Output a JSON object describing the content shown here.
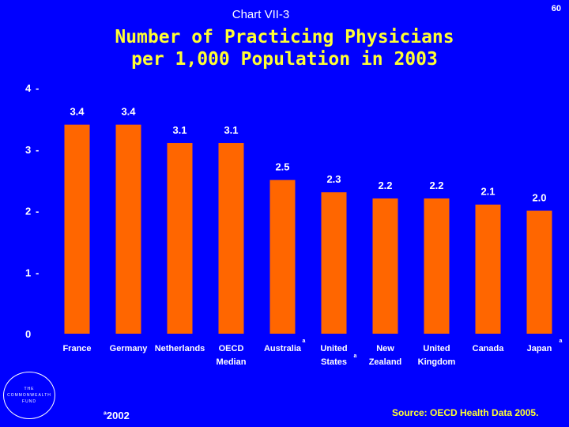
{
  "header": {
    "chart_label": "Chart VII-3",
    "page_number": "60",
    "title_line1": "Number of Practicing Physicians",
    "title_line2": "per 1,000 Population in 2003"
  },
  "footer": {
    "footnote_marker": "a",
    "footnote_text": "2002",
    "source": "Source: OECD Health Data 2005.",
    "logo_lines": [
      "THE",
      "COMMONWEALTH",
      "FUND"
    ]
  },
  "colors": {
    "background": "#0000ff",
    "bar": "#ff6600",
    "title": "#ffff33",
    "text": "#ffffff"
  },
  "chart_data": {
    "type": "bar",
    "title": "Number of Practicing Physicians per 1,000 Population in 2003",
    "xlabel": "",
    "ylabel": "",
    "ylim": [
      0,
      4
    ],
    "yticks": [
      0,
      1,
      2,
      3,
      4
    ],
    "categories": [
      {
        "line1": "France",
        "line2": "",
        "note": ""
      },
      {
        "line1": "Germany",
        "line2": "",
        "note": ""
      },
      {
        "line1": "Netherlands",
        "line2": "",
        "note": ""
      },
      {
        "line1": "OECD",
        "line2": "Median",
        "note": ""
      },
      {
        "line1": "Australia",
        "line2": "",
        "note": "a"
      },
      {
        "line1": "United",
        "line2": "States",
        "note": "a"
      },
      {
        "line1": "New",
        "line2": "Zealand",
        "note": ""
      },
      {
        "line1": "United",
        "line2": "Kingdom",
        "note": ""
      },
      {
        "line1": "Canada",
        "line2": "",
        "note": ""
      },
      {
        "line1": "Japan",
        "line2": "",
        "note": "a"
      }
    ],
    "values": [
      3.4,
      3.4,
      3.1,
      3.1,
      2.5,
      2.3,
      2.2,
      2.2,
      2.1,
      2.0
    ],
    "value_labels": [
      "3.4",
      "3.4",
      "3.1",
      "3.1",
      "2.5",
      "2.3",
      "2.2",
      "2.2",
      "2.1",
      "2.0"
    ]
  }
}
